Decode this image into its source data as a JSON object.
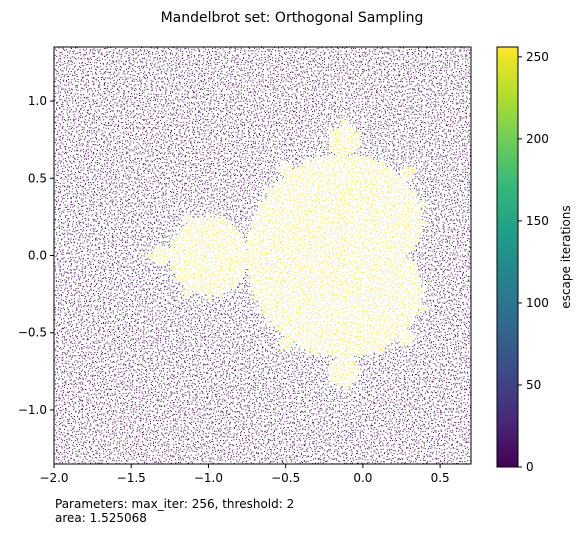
{
  "title": "Mandelbrot set: Orthogonal Sampling",
  "caption": {
    "line1": "Parameters: max_iter: 256, threshold: 2",
    "line2": "area: 1.525068"
  },
  "chart_data": {
    "type": "scatter",
    "title": "Mandelbrot set: Orthogonal Sampling",
    "xlabel": "",
    "ylabel": "",
    "xlim": [
      -2.0,
      0.7
    ],
    "ylim": [
      -1.35,
      1.35
    ],
    "x_ticks": [
      -2.0,
      -1.5,
      -1.0,
      -0.5,
      0.0,
      0.5
    ],
    "x_tick_labels": [
      "−2.0",
      "−1.5",
      "−1.0",
      "−0.5",
      "0.0",
      "0.5"
    ],
    "y_ticks": [
      -1.0,
      -0.5,
      0.0,
      0.5,
      1.0
    ],
    "y_tick_labels": [
      "−1.0",
      "−0.5",
      "0.0",
      "0.5",
      "1.0"
    ],
    "grid": false,
    "point_color_variable": "escape iterations",
    "max_iter": 256,
    "threshold": 2,
    "sampling": "orthogonal",
    "colormap": "viridis",
    "colorbar": {
      "label": "escape iterations",
      "range": [
        0,
        256
      ],
      "ticks": [
        0,
        50,
        100,
        150,
        200,
        250
      ],
      "tick_labels": [
        "0",
        "50",
        "100",
        "150",
        "200",
        "250"
      ],
      "colors": [
        "#440154",
        "#482878",
        "#3e4a89",
        "#31688e",
        "#26828e",
        "#1f9e89",
        "#35b779",
        "#6ece58",
        "#b5de2b",
        "#fde725"
      ]
    },
    "area": 1.525068
  }
}
